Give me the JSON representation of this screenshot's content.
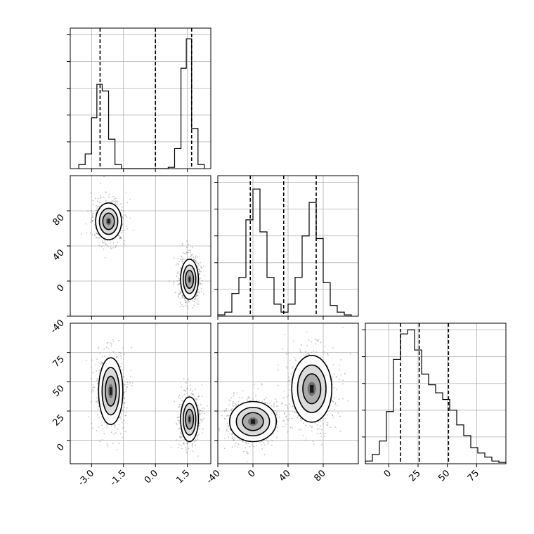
{
  "figure": {
    "type": "corner-plot",
    "grid": true,
    "background": "#ffffff",
    "axis_color": "#000000",
    "grid_color": "#b0b0b0",
    "line_color": "#000000"
  },
  "chart_data": [
    {
      "id": "hist-p1",
      "type": "histogram",
      "xlim": [
        -4.0,
        2.6
      ],
      "quantile_lines": [
        -2.6,
        0.0,
        1.7
      ],
      "bin_edges": [
        -3.6,
        -3.3,
        -3.0,
        -2.75,
        -2.5,
        -2.2,
        -1.9,
        -1.6,
        -1.3,
        -1.0,
        0.6,
        0.9,
        1.2,
        1.45,
        1.7,
        2.0,
        2.3
      ],
      "counts": [
        0.03,
        0.11,
        0.38,
        0.63,
        0.58,
        0.22,
        0.03,
        0,
        0,
        0,
        0.01,
        0.15,
        0.75,
        0.97,
        0.3,
        0.03
      ]
    },
    {
      "id": "scatter-p1-p2",
      "type": "density-scatter",
      "xlim": [
        -4.0,
        2.6
      ],
      "ylim": [
        -40,
        120
      ],
      "yticks": [
        "-40",
        "0",
        "40",
        "80"
      ],
      "clusters": [
        {
          "center": [
            -2.2,
            68
          ],
          "sd": [
            0.32,
            11
          ]
        },
        {
          "center": [
            1.6,
            2
          ],
          "sd": [
            0.22,
            12
          ]
        }
      ]
    },
    {
      "id": "hist-p2",
      "type": "histogram",
      "xlim": [
        -40,
        120
      ],
      "quantile_lines": [
        -3,
        35,
        72
      ],
      "bin_edges": [
        -40,
        -32,
        -24,
        -16,
        -8,
        0,
        8,
        16,
        24,
        32,
        40,
        48,
        56,
        64,
        72,
        80,
        88,
        96,
        104,
        112
      ],
      "counts": [
        0.01,
        0.03,
        0.17,
        0.29,
        0.72,
        0.95,
        0.63,
        0.29,
        0.09,
        0.03,
        0.09,
        0.29,
        0.6,
        0.85,
        0.58,
        0.25,
        0.08,
        0.03,
        0.01
      ]
    },
    {
      "id": "scatter-p1-p3",
      "type": "density-scatter",
      "xlim": [
        -4.0,
        2.6
      ],
      "ylim": [
        -20,
        100
      ],
      "xticks": [
        "-3.0",
        "-1.5",
        "0.0",
        "1.5"
      ],
      "yticks": [
        "0",
        "25",
        "50",
        "75"
      ],
      "clusters": [
        {
          "center": [
            -2.1,
            42
          ],
          "sd": [
            0.3,
            15
          ]
        },
        {
          "center": [
            1.6,
            18
          ],
          "sd": [
            0.22,
            10
          ]
        }
      ]
    },
    {
      "id": "scatter-p2-p3",
      "type": "density-scatter",
      "xlim": [
        -40,
        120
      ],
      "ylim": [
        -20,
        100
      ],
      "xticks": [
        "-40",
        "0",
        "40",
        "80"
      ],
      "clusters": [
        {
          "center": [
            0,
            16
          ],
          "sd": [
            14,
            9
          ]
        },
        {
          "center": [
            67,
            44
          ],
          "sd": [
            12,
            15
          ]
        }
      ]
    },
    {
      "id": "hist-p3",
      "type": "histogram",
      "xlim": [
        -20,
        100
      ],
      "quantile_lines": [
        10,
        26,
        51
      ],
      "xticks": [
        "0",
        "25",
        "50",
        "75"
      ],
      "bin_edges": [
        -20,
        -14,
        -8,
        -2,
        4,
        10,
        16,
        22,
        28,
        34,
        40,
        46,
        52,
        58,
        64,
        70,
        76,
        82,
        88,
        94,
        100
      ],
      "counts": [
        0.02,
        0.07,
        0.17,
        0.39,
        0.78,
        0.97,
        1.0,
        0.85,
        0.67,
        0.59,
        0.53,
        0.48,
        0.4,
        0.29,
        0.21,
        0.12,
        0.08,
        0.05,
        0.02,
        0.01
      ]
    }
  ]
}
